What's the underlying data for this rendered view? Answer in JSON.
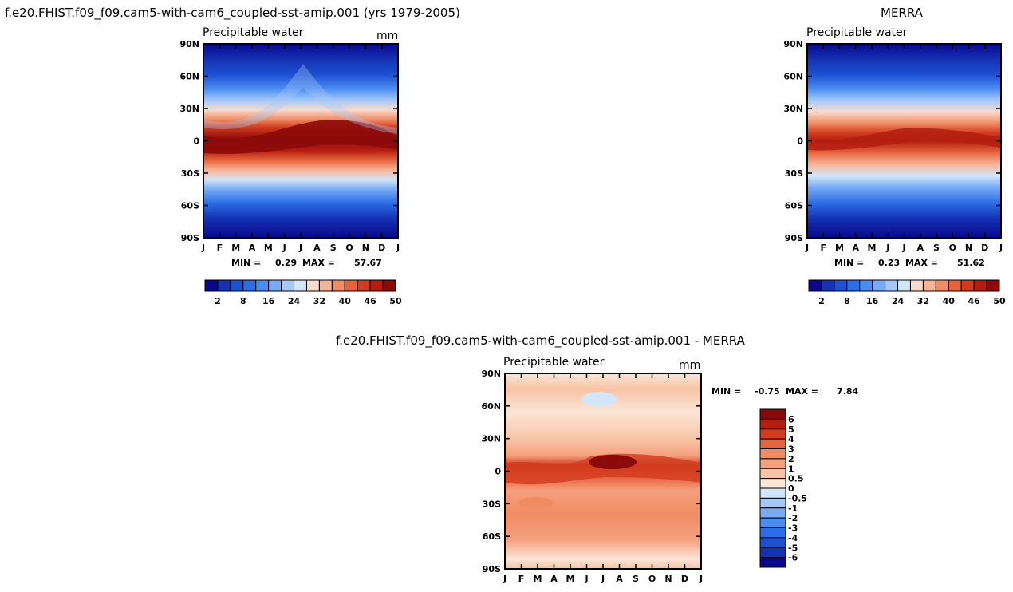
{
  "chart_data": [
    {
      "type": "heatmap",
      "panel": "model",
      "title": "f.e20.FHIST.f09_f09.cam5-with-cam6_coupled-sst-amip.001 (yrs 1979-2005)",
      "subtitle": "Precipitable water",
      "units": "mm",
      "x": [
        "J",
        "F",
        "M",
        "A",
        "M",
        "J",
        "J",
        "A",
        "S",
        "O",
        "N",
        "D",
        "J"
      ],
      "y_ticks": [
        "90N",
        "60N",
        "30N",
        "0",
        "30S",
        "60S",
        "90S"
      ],
      "min_label": "MIN =",
      "min": "0.29",
      "max_label": "MAX =",
      "max": "57.67",
      "colorbar_ticks": [
        "2",
        "8",
        "16",
        "24",
        "32",
        "40",
        "46",
        "50"
      ]
    },
    {
      "type": "heatmap",
      "panel": "obs",
      "title": "MERRA",
      "subtitle": "Precipitable water",
      "units": "",
      "x": [
        "J",
        "F",
        "M",
        "A",
        "M",
        "J",
        "J",
        "A",
        "S",
        "O",
        "N",
        "D",
        "J"
      ],
      "y_ticks": [
        "90N",
        "60N",
        "30N",
        "0",
        "30S",
        "60S",
        "90S"
      ],
      "min_label": "MIN =",
      "min": "0.23",
      "max_label": "MAX =",
      "max": "51.62",
      "colorbar_ticks": [
        "2",
        "8",
        "16",
        "24",
        "32",
        "40",
        "46",
        "50"
      ]
    },
    {
      "type": "heatmap",
      "panel": "diff",
      "title": "f.e20.FHIST.f09_f09.cam5-with-cam6_coupled-sst-amip.001 - MERRA",
      "subtitle": "Precipitable water",
      "units": "mm",
      "x": [
        "J",
        "F",
        "M",
        "A",
        "M",
        "J",
        "J",
        "A",
        "S",
        "O",
        "N",
        "D",
        "J"
      ],
      "y_ticks": [
        "90N",
        "60N",
        "30N",
        "0",
        "30S",
        "60S",
        "90S"
      ],
      "min_label": "MIN =",
      "min": "-0.75",
      "max_label": "MAX =",
      "max": "7.84",
      "colorbar_ticks": [
        "6",
        "5",
        "4",
        "3",
        "2",
        "1",
        "0.5",
        "0",
        "-0.5",
        "-1",
        "-2",
        "-3",
        "-4",
        "-5",
        "-6"
      ]
    }
  ],
  "colors": {
    "abs_scale": [
      "#08088c",
      "#1432b4",
      "#1e50d2",
      "#2d6ee6",
      "#4a8cf0",
      "#78aaf5",
      "#a5c8f8",
      "#d2e6fa",
      "#fadccd",
      "#f5b496",
      "#f08c64",
      "#e6643c",
      "#d23c1e",
      "#b41e0f",
      "#8c0a0a"
    ],
    "diff_scale": [
      "#8c0a0a",
      "#b41e0f",
      "#d23c1e",
      "#e6643c",
      "#f08c64",
      "#f5a07d",
      "#f8c3a5",
      "#fbe6d7",
      "#d2e6fa",
      "#a5c8f8",
      "#78aaf5",
      "#4a8cf0",
      "#2d6ee6",
      "#1e50d2",
      "#1432b4",
      "#08088c"
    ]
  }
}
